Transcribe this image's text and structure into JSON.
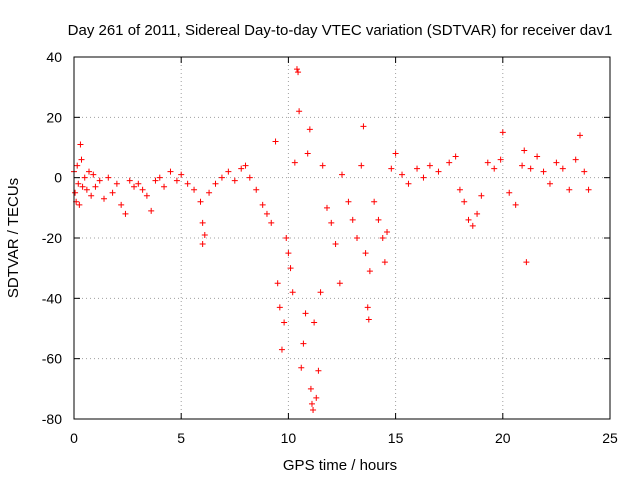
{
  "chart_data": {
    "type": "scatter",
    "title": "Day 261 of 2011, Sidereal Day-to-day VTEC variation (SDTVAR) for receiver dav1",
    "xlabel": "GPS time / hours",
    "ylabel": "SDTVAR / TECUs",
    "xlim": [
      0,
      25
    ],
    "ylim": [
      -80,
      40
    ],
    "x_ticks": [
      0,
      5,
      10,
      15,
      20,
      25
    ],
    "y_ticks": [
      -80,
      -60,
      -40,
      -20,
      0,
      20,
      40
    ],
    "x_tick_labels": [
      "0",
      "5",
      "10",
      "15",
      "20",
      "25"
    ],
    "y_tick_labels": [
      "-80",
      "-60",
      "-40",
      "-20",
      "0",
      "20",
      "40"
    ],
    "grid": true,
    "marker": "+",
    "series": [
      {
        "name": "SDTVAR",
        "color": "#ff0000",
        "points": [
          [
            0.0,
            2
          ],
          [
            0.05,
            -5
          ],
          [
            0.1,
            -8
          ],
          [
            0.15,
            4
          ],
          [
            0.2,
            -2
          ],
          [
            0.25,
            -9
          ],
          [
            0.3,
            11
          ],
          [
            0.35,
            6
          ],
          [
            0.4,
            -3
          ],
          [
            0.5,
            0
          ],
          [
            0.6,
            -4
          ],
          [
            0.7,
            2
          ],
          [
            0.8,
            -6
          ],
          [
            0.9,
            1
          ],
          [
            1.0,
            -3
          ],
          [
            1.2,
            -1
          ],
          [
            1.4,
            -7
          ],
          [
            1.6,
            0
          ],
          [
            1.8,
            -5
          ],
          [
            2.0,
            -2
          ],
          [
            2.2,
            -9
          ],
          [
            2.4,
            -12
          ],
          [
            2.6,
            -1
          ],
          [
            2.8,
            -3
          ],
          [
            3.0,
            -2
          ],
          [
            3.2,
            -4
          ],
          [
            3.4,
            -6
          ],
          [
            3.6,
            -11
          ],
          [
            3.8,
            -1
          ],
          [
            4.0,
            0
          ],
          [
            4.2,
            -3
          ],
          [
            4.5,
            2
          ],
          [
            4.8,
            -1
          ],
          [
            5.0,
            1
          ],
          [
            5.3,
            -2
          ],
          [
            5.6,
            -4
          ],
          [
            5.9,
            -8
          ],
          [
            6.0,
            -15
          ],
          [
            6.1,
            -19
          ],
          [
            6.0,
            -22
          ],
          [
            6.3,
            -5
          ],
          [
            6.6,
            -2
          ],
          [
            6.9,
            0
          ],
          [
            7.2,
            2
          ],
          [
            7.5,
            -1
          ],
          [
            7.8,
            3
          ],
          [
            8.0,
            4
          ],
          [
            8.2,
            0
          ],
          [
            8.5,
            -4
          ],
          [
            8.8,
            -9
          ],
          [
            9.0,
            -12
          ],
          [
            9.2,
            -15
          ],
          [
            9.4,
            12
          ],
          [
            9.5,
            -35
          ],
          [
            9.6,
            -43
          ],
          [
            9.7,
            -57
          ],
          [
            9.8,
            -48
          ],
          [
            9.9,
            -20
          ],
          [
            10.0,
            -25
          ],
          [
            10.1,
            -30
          ],
          [
            10.2,
            -38
          ],
          [
            10.3,
            5
          ],
          [
            10.4,
            36
          ],
          [
            10.45,
            35
          ],
          [
            10.5,
            22
          ],
          [
            10.6,
            -63
          ],
          [
            10.7,
            -55
          ],
          [
            10.8,
            -45
          ],
          [
            10.9,
            8
          ],
          [
            11.0,
            16
          ],
          [
            11.05,
            -70
          ],
          [
            11.1,
            -75
          ],
          [
            11.15,
            -77
          ],
          [
            11.2,
            -48
          ],
          [
            11.3,
            -73
          ],
          [
            11.4,
            -64
          ],
          [
            11.5,
            -38
          ],
          [
            11.6,
            4
          ],
          [
            11.8,
            -10
          ],
          [
            12.0,
            -15
          ],
          [
            12.2,
            -22
          ],
          [
            12.4,
            -35
          ],
          [
            12.5,
            1
          ],
          [
            12.8,
            -8
          ],
          [
            13.0,
            -14
          ],
          [
            13.2,
            -20
          ],
          [
            13.4,
            4
          ],
          [
            13.5,
            17
          ],
          [
            13.6,
            -25
          ],
          [
            13.7,
            -43
          ],
          [
            13.75,
            -47
          ],
          [
            13.8,
            -31
          ],
          [
            14.0,
            -8
          ],
          [
            14.2,
            -14
          ],
          [
            14.4,
            -20
          ],
          [
            14.5,
            -28
          ],
          [
            14.6,
            -18
          ],
          [
            14.8,
            3
          ],
          [
            15.0,
            8
          ],
          [
            15.3,
            1
          ],
          [
            15.6,
            -2
          ],
          [
            16.0,
            3
          ],
          [
            16.3,
            0
          ],
          [
            16.6,
            4
          ],
          [
            17.0,
            2
          ],
          [
            17.5,
            5
          ],
          [
            17.8,
            7
          ],
          [
            18.0,
            -4
          ],
          [
            18.2,
            -8
          ],
          [
            18.4,
            -14
          ],
          [
            18.6,
            -16
          ],
          [
            18.8,
            -12
          ],
          [
            19.0,
            -6
          ],
          [
            19.3,
            5
          ],
          [
            19.6,
            3
          ],
          [
            19.9,
            6
          ],
          [
            20.0,
            15
          ],
          [
            20.3,
            -5
          ],
          [
            20.6,
            -9
          ],
          [
            20.9,
            4
          ],
          [
            21.0,
            9
          ],
          [
            21.1,
            -28
          ],
          [
            21.3,
            3
          ],
          [
            21.6,
            7
          ],
          [
            21.9,
            2
          ],
          [
            22.2,
            -2
          ],
          [
            22.5,
            5
          ],
          [
            22.8,
            3
          ],
          [
            23.1,
            -4
          ],
          [
            23.4,
            6
          ],
          [
            23.6,
            14
          ],
          [
            23.8,
            2
          ],
          [
            24.0,
            -4
          ]
        ]
      }
    ]
  }
}
